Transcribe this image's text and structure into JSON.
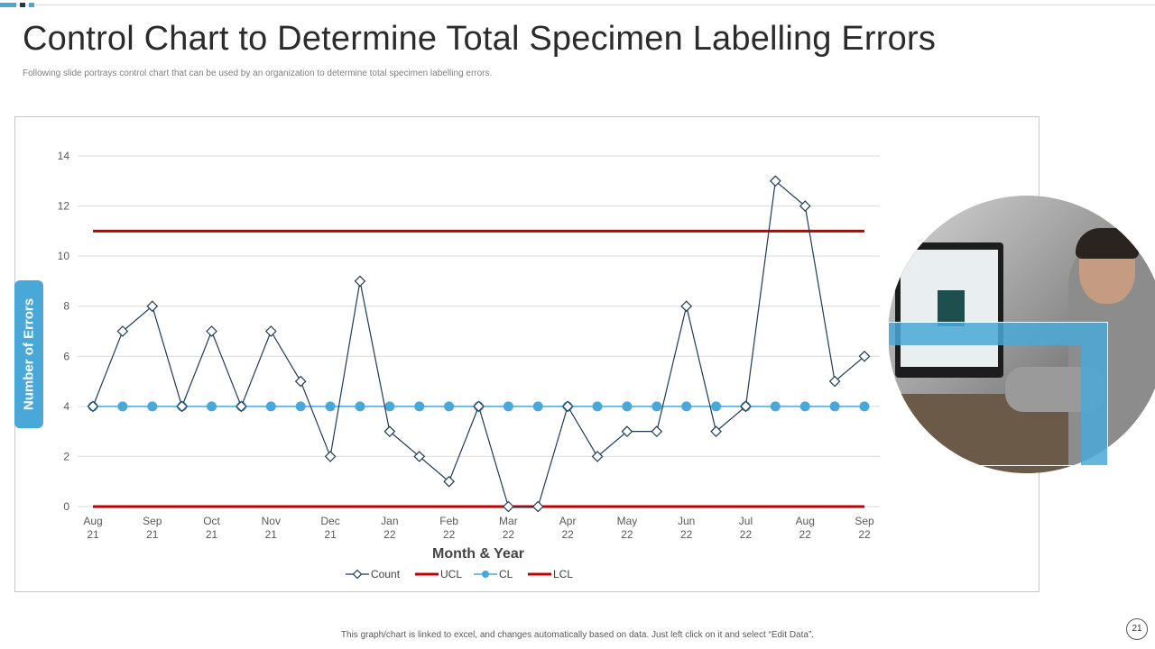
{
  "slide": {
    "title": "Control Chart to Determine Total Specimen Labelling Errors",
    "subtitle": "Following slide portrays control chart that can be used by an organization to determine total specimen labelling errors.",
    "footer_note": "This graph/chart is linked to excel, and changes automatically based on data. Just left click on it and select “Edit Data”.",
    "page_number": "21"
  },
  "colors": {
    "accent": "#4aa8d8",
    "count_line": "#1f3b57",
    "limit_line": "#c00000",
    "cl_line": "#4aa8d8"
  },
  "chart_data": {
    "type": "line",
    "title": "",
    "xlabel": "Month & Year",
    "ylabel": "Number of Errors",
    "ylim": [
      0,
      14
    ],
    "y_ticks": [
      0,
      2,
      4,
      6,
      8,
      10,
      12,
      14
    ],
    "grid": true,
    "legend_position": "bottom",
    "x_tick_labels": [
      {
        "index": 0,
        "line1": "Aug",
        "line2": "21"
      },
      {
        "index": 2,
        "line1": "Sep",
        "line2": "21"
      },
      {
        "index": 4,
        "line1": "Oct",
        "line2": "21"
      },
      {
        "index": 6,
        "line1": "Nov",
        "line2": "21"
      },
      {
        "index": 8,
        "line1": "Dec",
        "line2": "21"
      },
      {
        "index": 10,
        "line1": "Jan",
        "line2": "22"
      },
      {
        "index": 12,
        "line1": "Feb",
        "line2": "22"
      },
      {
        "index": 14,
        "line1": "Mar",
        "line2": "22"
      },
      {
        "index": 16,
        "line1": "Apr",
        "line2": "22"
      },
      {
        "index": 18,
        "line1": "May",
        "line2": "22"
      },
      {
        "index": 20,
        "line1": "Jun",
        "line2": "22"
      },
      {
        "index": 22,
        "line1": "Jul",
        "line2": "22"
      },
      {
        "index": 24,
        "line1": "Aug",
        "line2": "22"
      },
      {
        "index": 26,
        "line1": "Sep",
        "line2": "22"
      }
    ],
    "series": [
      {
        "name": "Count",
        "style": "line-diamond",
        "values": [
          4,
          7,
          8,
          4,
          7,
          4,
          7,
          5,
          2,
          9,
          3,
          2,
          1,
          4,
          0,
          0,
          4,
          2,
          3,
          3,
          8,
          3,
          4,
          13,
          12,
          5,
          6
        ]
      },
      {
        "name": "UCL",
        "style": "thick-line",
        "values": [
          11,
          11,
          11,
          11,
          11,
          11,
          11,
          11,
          11,
          11,
          11,
          11,
          11,
          11,
          11,
          11,
          11,
          11,
          11,
          11,
          11,
          11,
          11,
          11,
          11,
          11,
          11
        ]
      },
      {
        "name": "CL",
        "style": "line-dot",
        "values": [
          4,
          4,
          4,
          4,
          4,
          4,
          4,
          4,
          4,
          4,
          4,
          4,
          4,
          4,
          4,
          4,
          4,
          4,
          4,
          4,
          4,
          4,
          4,
          4,
          4,
          4,
          4
        ]
      },
      {
        "name": "LCL",
        "style": "thick-line",
        "values": [
          0,
          0,
          0,
          0,
          0,
          0,
          0,
          0,
          0,
          0,
          0,
          0,
          0,
          0,
          0,
          0,
          0,
          0,
          0,
          0,
          0,
          0,
          0,
          0,
          0,
          0,
          0
        ]
      }
    ]
  }
}
